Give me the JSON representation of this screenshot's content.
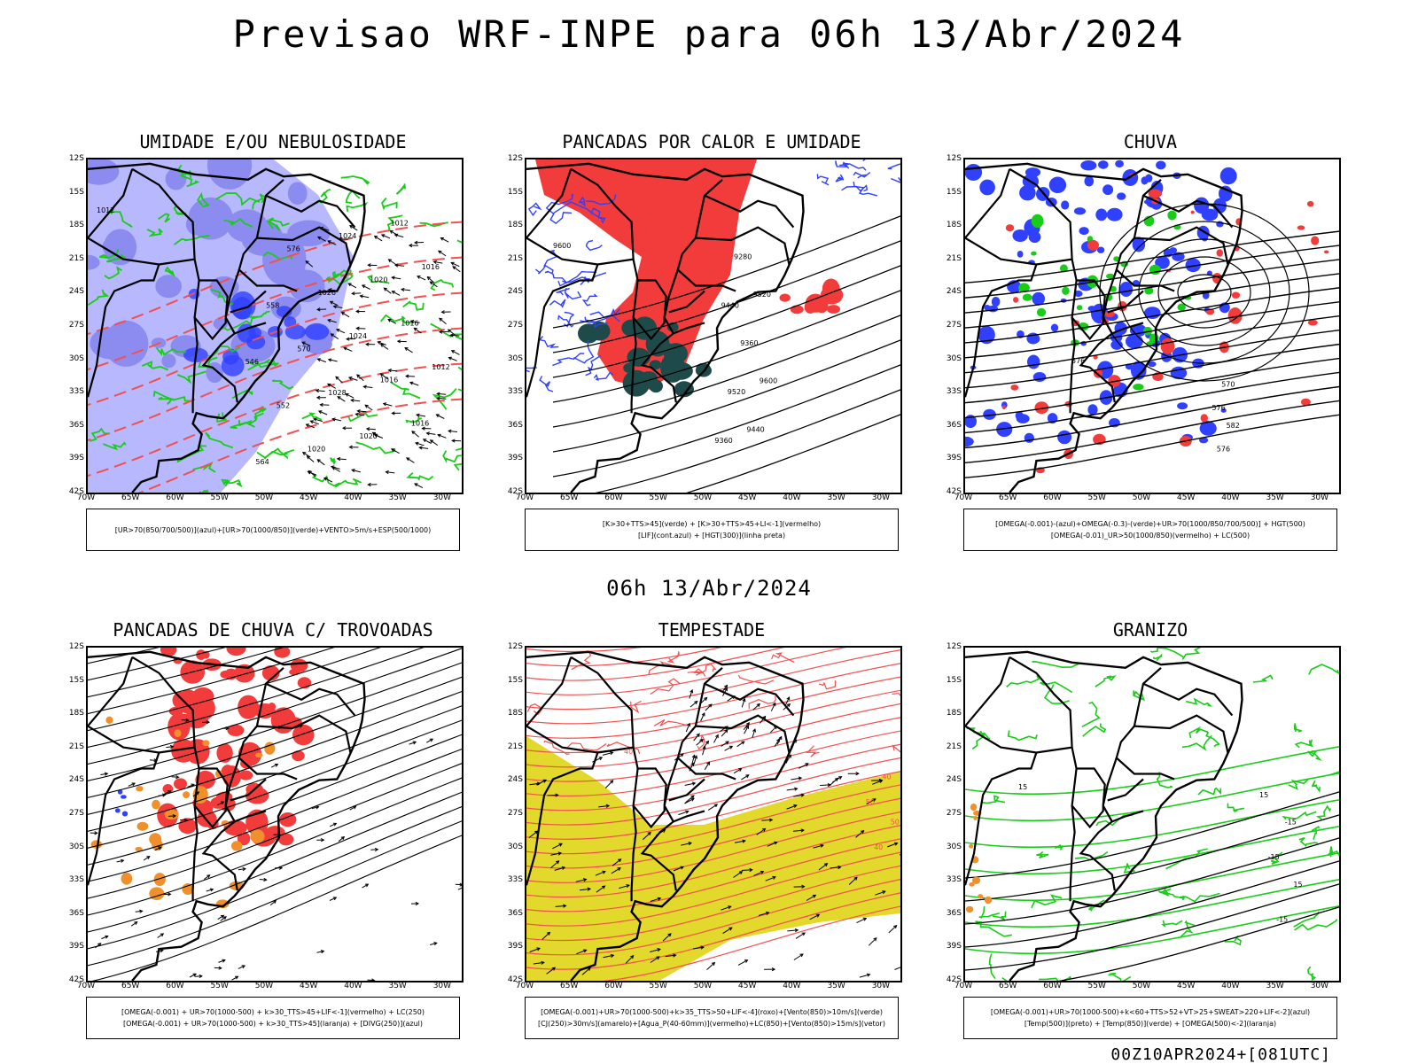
{
  "title": "Previsao WRF-INPE  para 06h 13/Abr/2024",
  "subtitle": "06h 13/Abr/2024",
  "footer": "00Z10APR2024+[081UTC]",
  "lat_labels": [
    "12S",
    "15S",
    "18S",
    "21S",
    "24S",
    "27S",
    "30S",
    "33S",
    "36S",
    "39S",
    "42S"
  ],
  "lon_labels": [
    "70W",
    "65W",
    "60W",
    "55W",
    "50W",
    "45W",
    "40W",
    "35W",
    "30W"
  ],
  "panels": [
    {
      "title": "UMIDADE E/OU NEBULOSIDADE",
      "legend": [
        "[UR>70(850/700/500)](azul)+[UR>70(1000/850)](verde)+VENTO>5m/s+ESP(500/1000)"
      ],
      "contour_labels": [
        "1012",
        "1012",
        "1016",
        "1016",
        "1016",
        "1012",
        "1016",
        "1020",
        "1020",
        "1024",
        "1024",
        "1028",
        "1026",
        "1020",
        "570",
        "576",
        "552",
        "558",
        "564",
        "546"
      ]
    },
    {
      "title": "PANCADAS POR CALOR E UMIDADE",
      "legend": [
        "[K>30+TTS>45](verde) + [K>30+TTS>45+LI<-1](vermelho)",
        "[LIF](cont.azul) + [HGT(300)](linha preta)"
      ],
      "contour_labels": [
        "9600",
        "9600",
        "9520",
        "9440",
        "9360",
        "9280",
        "9520",
        "9440",
        "9360"
      ]
    },
    {
      "title": "CHUVA",
      "legend": [
        "[OMEGA(-0.001)-(azul)+OMEGA(-0.3)-(verde)+UR>70(1000/850/700/500)] + HGT(500)",
        "[OMEGA(-0.01)_UR>50(1000/850)(vermelho) + LC(500)"
      ],
      "contour_labels": [
        "576",
        "582",
        "570",
        "576",
        "576"
      ]
    },
    {
      "title": "PANCADAS DE CHUVA C/ TROVOADAS",
      "legend": [
        "[OMEGA(-0.001) + UR>70(1000-500) + k>30_TTS>45+LIF<-1](vermelho) + LC(250)",
        "[OMEGA(-0.001) + UR>70(1000-500) + k>30_TTS>45](laranja) + [DIVG(250)](azul)"
      ],
      "contour_labels": []
    },
    {
      "title": "TEMPESTADE",
      "legend": [
        "[OMEGA(-0.001)+UR>70(1000-500)+k>35_TTS>50+LIF<-4](roxo)+[Vento(850)>10m/s](verde)",
        "[CJ(250)>30m/s](amarelo)+[Agua_P(40-60mm)](vermelho)+LC(850)+[Vento(850)>15m/s](vetor)"
      ],
      "contour_labels": [
        "40",
        "50",
        "40",
        "40",
        "50"
      ]
    },
    {
      "title": "GRANIZO",
      "legend": [
        "[OMEGA(-0.001)+UR>70(1000-500)+k<60+TTS>52+VT>25+SWEAT>220+LIF<-2](azul)",
        "[Temp(500)](preto) + [Temp(850)](verde) + [OMEGA(500)<-2](laranja)"
      ],
      "contour_labels": [
        "15",
        "15",
        "-15",
        "-15",
        "-15",
        "15"
      ]
    }
  ],
  "colors": {
    "blue": "#3040ff",
    "lightblue": "#b8b8ff",
    "midblue": "#8c8cf0",
    "green": "#18cc18",
    "red": "#f23c3c",
    "darkgreen": "#1f4a4a",
    "orange": "#f0902a",
    "yellow": "#e3d82c",
    "redline": "#f25050"
  }
}
